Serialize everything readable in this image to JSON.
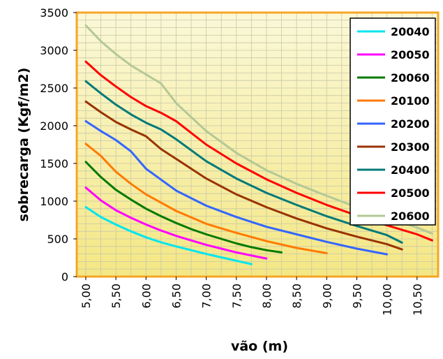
{
  "chart_data": {
    "type": "line",
    "xlabel": "vão (m)",
    "ylabel": "sobrecarga (Kgf/m2)",
    "xlim": [
      4.85,
      10.85
    ],
    "ylim": [
      0,
      3500
    ],
    "x_ticks": [
      "5,00",
      "5,50",
      "6,00",
      "6,50",
      "7,00",
      "7,50",
      "8,00",
      "8,50",
      "9,00",
      "9,50",
      "10,00",
      "10,50"
    ],
    "y_ticks": [
      "0",
      "500",
      "1000",
      "1500",
      "2000",
      "2500",
      "3000",
      "3500"
    ],
    "grid": true,
    "legend_position": "top-right",
    "colors": {
      "plot_bg_top": "#fbf8d8",
      "plot_bg_bottom": "#f4e784",
      "border": "#f5a623",
      "grid": "#c8c8a8"
    },
    "series": [
      {
        "name": "20040",
        "color": "#00e5ee",
        "x": [
          5.0,
          5.25,
          5.5,
          5.75,
          6.0,
          6.25,
          6.5,
          6.75,
          7.0,
          7.25,
          7.5,
          7.75
        ],
        "y": [
          920,
          790,
          690,
          600,
          520,
          455,
          400,
          350,
          300,
          255,
          210,
          165
        ]
      },
      {
        "name": "20050",
        "color": "#ff00ff",
        "x": [
          5.0,
          5.25,
          5.5,
          5.75,
          6.0,
          6.25,
          6.5,
          6.75,
          7.0,
          7.25,
          7.5,
          7.75,
          8.0
        ],
        "y": [
          1180,
          1010,
          880,
          780,
          690,
          610,
          540,
          480,
          420,
          370,
          320,
          280,
          240
        ]
      },
      {
        "name": "20060",
        "color": "#007a00",
        "x": [
          5.0,
          5.25,
          5.5,
          5.75,
          6.0,
          6.25,
          6.5,
          6.75,
          7.0,
          7.25,
          7.5,
          7.75,
          8.0,
          8.25
        ],
        "y": [
          1520,
          1320,
          1150,
          1020,
          900,
          800,
          710,
          630,
          560,
          500,
          440,
          390,
          350,
          320
        ]
      },
      {
        "name": "20100",
        "color": "#ff7a00",
        "x": [
          5.0,
          5.25,
          5.5,
          5.75,
          6.0,
          6.5,
          7.0,
          7.5,
          8.0,
          8.5,
          9.0
        ],
        "y": [
          1760,
          1600,
          1390,
          1230,
          1090,
          870,
          700,
          580,
          470,
          380,
          310
        ]
      },
      {
        "name": "20200",
        "color": "#3366ff",
        "x": [
          5.0,
          5.25,
          5.5,
          5.75,
          6.0,
          6.5,
          7.0,
          7.5,
          8.0,
          8.5,
          9.0,
          9.5,
          10.0
        ],
        "y": [
          2060,
          1930,
          1810,
          1660,
          1430,
          1140,
          940,
          790,
          660,
          560,
          460,
          370,
          295
        ]
      },
      {
        "name": "20300",
        "color": "#993300",
        "x": [
          5.0,
          5.25,
          5.5,
          5.75,
          6.0,
          6.25,
          6.5,
          7.0,
          7.5,
          8.0,
          8.5,
          9.0,
          9.5,
          10.0,
          10.25
        ],
        "y": [
          2320,
          2180,
          2050,
          1950,
          1860,
          1690,
          1560,
          1300,
          1090,
          920,
          770,
          640,
          530,
          430,
          360
        ]
      },
      {
        "name": "20400",
        "color": "#007a78",
        "x": [
          5.0,
          5.25,
          5.5,
          5.75,
          6.0,
          6.25,
          6.5,
          7.0,
          7.5,
          8.0,
          8.5,
          9.0,
          9.5,
          10.0,
          10.25
        ],
        "y": [
          2590,
          2430,
          2280,
          2150,
          2040,
          1950,
          1820,
          1530,
          1300,
          1110,
          950,
          800,
          670,
          550,
          450
        ]
      },
      {
        "name": "20500",
        "color": "#ff0000",
        "x": [
          5.0,
          5.25,
          5.5,
          5.75,
          6.0,
          6.25,
          6.5,
          7.0,
          7.5,
          8.0,
          8.5,
          9.0,
          9.5,
          10.0,
          10.5,
          10.75
        ],
        "y": [
          2850,
          2670,
          2520,
          2380,
          2260,
          2170,
          2060,
          1750,
          1500,
          1290,
          1110,
          950,
          810,
          680,
          560,
          480
        ]
      },
      {
        "name": "20600",
        "color": "#b4c896",
        "x": [
          5.0,
          5.25,
          5.5,
          5.75,
          6.0,
          6.25,
          6.5,
          7.0,
          7.5,
          8.0,
          8.5,
          9.0,
          9.5,
          10.0,
          10.5,
          10.75
        ],
        "y": [
          3330,
          3120,
          2950,
          2800,
          2680,
          2560,
          2300,
          1930,
          1640,
          1410,
          1230,
          1070,
          920,
          780,
          650,
          570
        ]
      }
    ]
  }
}
